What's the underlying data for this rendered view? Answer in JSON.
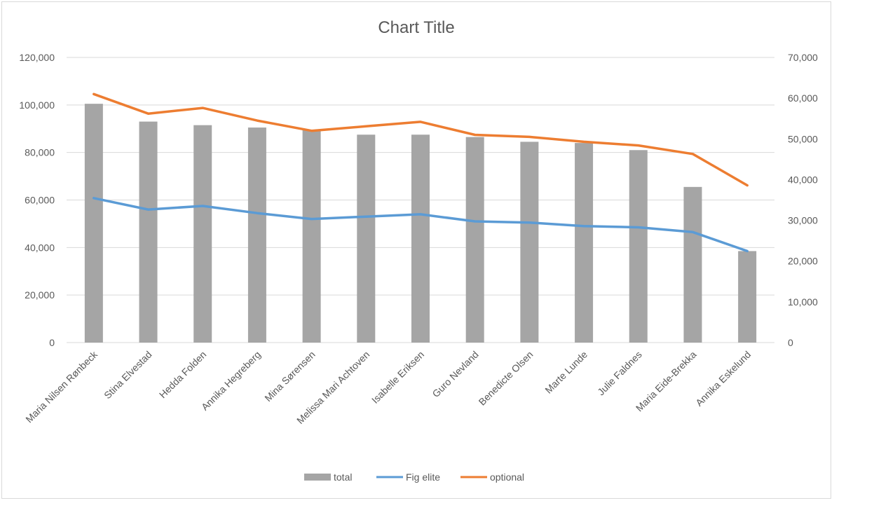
{
  "chart_data": {
    "type": "bar",
    "title": "Chart Title",
    "categories": [
      "Maria Nilsen Rønbeck",
      "Stina Elvestad",
      "Hedda Folden",
      "Annika Hegreberg",
      "Mina Sørensen",
      "Melissa Mari Achtoven",
      "Isabelle Eriksen",
      "Guro Nevland",
      "Benedicte Olsen",
      "Marte Lunde",
      "Julie Faldnes",
      "Maria Eide-Brekka",
      "Annika Eskelund"
    ],
    "y_axis_left": {
      "min": 0,
      "max": 120000,
      "step": 20000,
      "tick_labels": [
        "0",
        "20,000",
        "40,000",
        "60,000",
        "80,000",
        "100,000",
        "120,000"
      ]
    },
    "y_axis_right": {
      "min": 0,
      "max": 70000,
      "step": 10000,
      "tick_labels": [
        "0",
        "10,000",
        "20,000",
        "30,000",
        "40,000",
        "50,000",
        "60,000",
        "70,000"
      ]
    },
    "grid": true,
    "legend_position": "bottom",
    "series": [
      {
        "name": "total",
        "type": "bar",
        "axis": "left",
        "color": "#a5a5a5",
        "values": [
          100500,
          93000,
          91500,
          90500,
          89500,
          87500,
          87500,
          86500,
          84500,
          84000,
          81000,
          65500,
          38500
        ]
      },
      {
        "name": "Fig elite",
        "type": "line",
        "axis": "left",
        "color": "#5b9bd5",
        "values": [
          60800,
          56000,
          57500,
          54500,
          52000,
          53000,
          54000,
          51000,
          50500,
          49000,
          48500,
          46500,
          38500
        ]
      },
      {
        "name": "optional",
        "type": "line",
        "axis": "right",
        "color": "#ed7d31",
        "values": [
          61000,
          56200,
          57600,
          54500,
          52000,
          53100,
          54200,
          51000,
          50500,
          49300,
          48400,
          46300,
          38600
        ]
      }
    ]
  }
}
